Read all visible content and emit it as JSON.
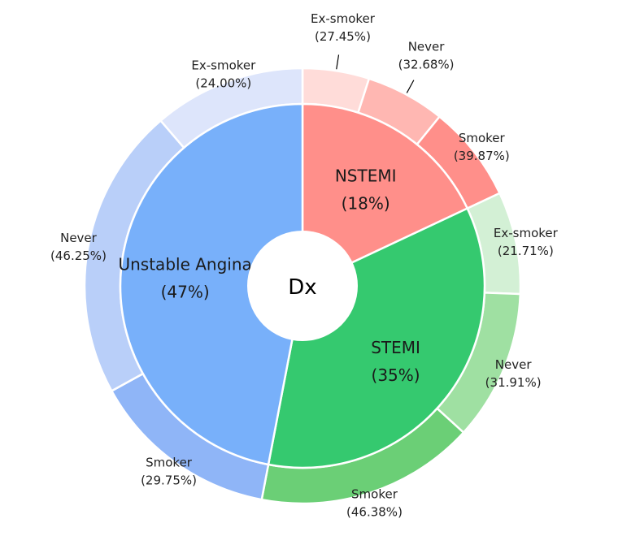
{
  "chart_data": {
    "type": "pie",
    "variant": "nested-donut",
    "center_label": "Dx",
    "inner": [
      {
        "label": "NSTEMI",
        "value": 18,
        "pct_text": "(18%)",
        "color": "#ff8f8a"
      },
      {
        "label": "STEMI",
        "value": 35,
        "pct_text": "(35%)",
        "color": "#35c96f"
      },
      {
        "label": "Unstable Angina",
        "value": 47,
        "pct_text": "(47%)",
        "color": "#78b0fa"
      }
    ],
    "outer": [
      {
        "parent": "NSTEMI",
        "label": "Ex-smoker",
        "pct": 27.45,
        "pct_text": "(27.45%)",
        "color": "#ffdcd9"
      },
      {
        "parent": "NSTEMI",
        "label": "Never",
        "pct": 32.68,
        "pct_text": "(32.68%)",
        "color": "#ffb7b2"
      },
      {
        "parent": "NSTEMI",
        "label": "Smoker",
        "pct": 39.87,
        "pct_text": "(39.87%)",
        "color": "#ff8f8a"
      },
      {
        "parent": "STEMI",
        "label": "Ex-smoker",
        "pct": 21.71,
        "pct_text": "(21.71%)",
        "color": "#d3f0d5"
      },
      {
        "parent": "STEMI",
        "label": "Never",
        "pct": 31.91,
        "pct_text": "(31.91%)",
        "color": "#9fe0a2"
      },
      {
        "parent": "STEMI",
        "label": "Smoker",
        "pct": 46.38,
        "pct_text": "(46.38%)",
        "color": "#6bcf76"
      },
      {
        "parent": "Unstable Angina",
        "label": "Smoker",
        "pct": 29.75,
        "pct_text": "(29.75%)",
        "color": "#8fb5f7"
      },
      {
        "parent": "Unstable Angina",
        "label": "Never",
        "pct": 46.25,
        "pct_text": "(46.25%)",
        "color": "#b9cff9"
      },
      {
        "parent": "Unstable Angina",
        "label": "Ex-smoker",
        "pct": 24.0,
        "pct_text": "(24.00%)",
        "color": "#dde5fb"
      }
    ]
  }
}
